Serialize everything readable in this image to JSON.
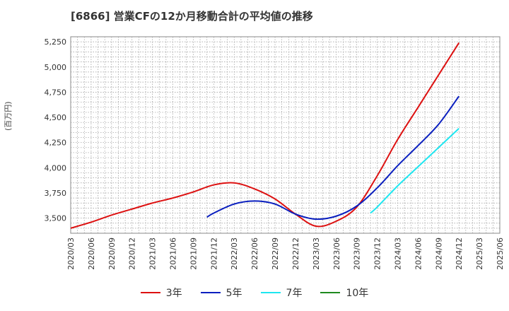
{
  "chart_data": {
    "type": "line",
    "title": "[6866]  営業CFの12か月移動合計の平均値の推移",
    "ylabel": "(百万円)",
    "xlabel": "",
    "ylim": [
      3350,
      5300
    ],
    "yticks": [
      "3,500",
      "3,750",
      "4,000",
      "4,250",
      "4,500",
      "4,750",
      "5,000",
      "5,250"
    ],
    "ytick_values": [
      3500,
      3750,
      4000,
      4250,
      4500,
      4750,
      5000,
      5250
    ],
    "x_categories": [
      "2020/03",
      "2020/06",
      "2020/09",
      "2020/12",
      "2021/03",
      "2021/06",
      "2021/09",
      "2021/12",
      "2022/03",
      "2022/06",
      "2022/09",
      "2022/12",
      "2023/03",
      "2023/06",
      "2023/09",
      "2023/12",
      "2024/03",
      "2024/06",
      "2024/09",
      "2024/12",
      "2025/03",
      "2025/06"
    ],
    "grid": true,
    "legend_position": "bottom",
    "series": [
      {
        "name": "3年",
        "color": "#dd1111",
        "points": [
          [
            "2020/03",
            3400
          ],
          [
            "2020/06",
            3460
          ],
          [
            "2020/09",
            3530
          ],
          [
            "2020/12",
            3590
          ],
          [
            "2021/03",
            3650
          ],
          [
            "2021/06",
            3700
          ],
          [
            "2021/09",
            3760
          ],
          [
            "2021/12",
            3830
          ],
          [
            "2022/03",
            3850
          ],
          [
            "2022/06",
            3790
          ],
          [
            "2022/09",
            3690
          ],
          [
            "2022/12",
            3540
          ],
          [
            "2023/03",
            3420
          ],
          [
            "2023/06",
            3470
          ],
          [
            "2023/09",
            3610
          ],
          [
            "2023/12",
            3920
          ],
          [
            "2024/03",
            4280
          ],
          [
            "2024/06",
            4600
          ],
          [
            "2024/09",
            4920
          ],
          [
            "2024/12",
            5240
          ]
        ]
      },
      {
        "name": "5年",
        "color": "#0a1fbf",
        "points": [
          [
            "2021/11",
            3510
          ],
          [
            "2021/12",
            3550
          ],
          [
            "2022/03",
            3640
          ],
          [
            "2022/06",
            3670
          ],
          [
            "2022/09",
            3640
          ],
          [
            "2022/12",
            3540
          ],
          [
            "2023/03",
            3490
          ],
          [
            "2023/06",
            3520
          ],
          [
            "2023/09",
            3620
          ],
          [
            "2023/12",
            3800
          ],
          [
            "2024/03",
            4020
          ],
          [
            "2024/06",
            4220
          ],
          [
            "2024/09",
            4430
          ],
          [
            "2024/12",
            4710
          ]
        ]
      },
      {
        "name": "7年",
        "color": "#1ee6f0",
        "points": [
          [
            "2023/11",
            3550
          ],
          [
            "2023/12",
            3610
          ],
          [
            "2024/03",
            3820
          ],
          [
            "2024/06",
            4010
          ],
          [
            "2024/09",
            4200
          ],
          [
            "2024/12",
            4390
          ]
        ]
      },
      {
        "name": "10年",
        "color": "#1f8a1f",
        "points": []
      }
    ]
  }
}
